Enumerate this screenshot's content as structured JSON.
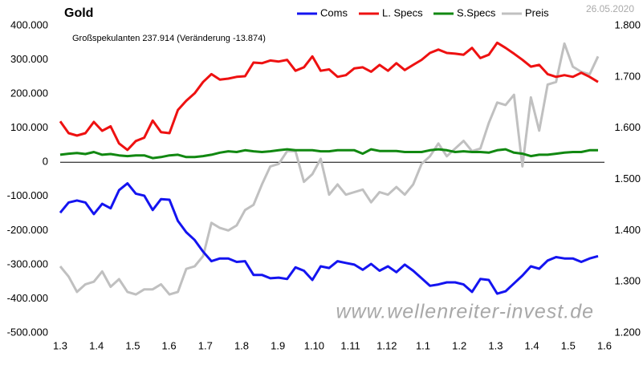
{
  "chart_data": {
    "type": "line",
    "title": "Gold",
    "subtitle": "Großspekulanten 237.914 (Veränderung -13.874)",
    "date": "26.05.2020",
    "watermark": "www.wellenreiter-invest.de",
    "xticks": [
      "1.3",
      "1.4",
      "1.5",
      "1.6",
      "1.7",
      "1.8",
      "1.9",
      "1.10",
      "1.11",
      "1.12",
      "1.1",
      "1.2",
      "1.3",
      "1.4",
      "1.5",
      "1.6"
    ],
    "ylim": [
      -500000,
      400000
    ],
    "yticks": [
      {
        "value": 400000,
        "label": "400.000"
      },
      {
        "value": 300000,
        "label": "300.000"
      },
      {
        "value": 200000,
        "label": "200.000"
      },
      {
        "value": 100000,
        "label": "100.000"
      },
      0,
      {
        "value": -100000,
        "label": "-100.000"
      },
      {
        "value": -200000,
        "label": "-200.000"
      },
      {
        "value": -300000,
        "label": "-300.000"
      },
      {
        "value": -400000,
        "label": "-400.000"
      },
      {
        "value": -500000,
        "label": "-500.000"
      }
    ],
    "y2lim": [
      1.2,
      1.8
    ],
    "y2ticks": [
      {
        "value": 1.8,
        "label": "1.800"
      },
      {
        "value": 1.7,
        "label": "1.700"
      },
      {
        "value": 1.6,
        "label": "1.600"
      },
      {
        "value": 1.5,
        "label": "1.500"
      },
      {
        "value": 1.4,
        "label": "1.400"
      },
      {
        "value": 1.3,
        "label": "1.300"
      },
      {
        "value": 1.2,
        "label": "1.200"
      }
    ],
    "grid": false,
    "legend": "top",
    "series": [
      {
        "name": "Preis",
        "color": "#c0c0c0",
        "axis": "y2",
        "values": [
          1.33,
          1.31,
          1.28,
          1.295,
          1.3,
          1.32,
          1.29,
          1.305,
          1.28,
          1.275,
          1.285,
          1.285,
          1.295,
          1.275,
          1.28,
          1.325,
          1.33,
          1.35,
          1.415,
          1.405,
          1.4,
          1.41,
          1.44,
          1.45,
          1.49,
          1.525,
          1.53,
          1.555,
          1.555,
          1.495,
          1.51,
          1.54,
          1.47,
          1.49,
          1.47,
          1.475,
          1.48,
          1.455,
          1.475,
          1.47,
          1.485,
          1.47,
          1.49,
          1.53,
          1.545,
          1.57,
          1.545,
          1.56,
          1.575,
          1.555,
          1.56,
          1.61,
          1.65,
          1.645,
          1.665,
          1.525,
          1.66,
          1.595,
          1.685,
          1.69,
          1.765,
          1.72,
          1.71,
          1.705,
          1.74
        ]
      },
      {
        "name": "Coms",
        "color": "#1414f0",
        "values": [
          -148000,
          -118000,
          -112000,
          -118000,
          -152000,
          -122000,
          -135000,
          -82000,
          -62000,
          -92000,
          -98000,
          -140000,
          -108000,
          -110000,
          -172000,
          -205000,
          -228000,
          -262000,
          -290000,
          -282000,
          -282000,
          -292000,
          -290000,
          -330000,
          -330000,
          -340000,
          -338000,
          -342000,
          -308000,
          -318000,
          -345000,
          -305000,
          -310000,
          -290000,
          -295000,
          -300000,
          -315000,
          -298000,
          -318000,
          -305000,
          -322000,
          -300000,
          -318000,
          -340000,
          -362000,
          -358000,
          -352000,
          -352000,
          -358000,
          -380000,
          -342000,
          -345000,
          -385000,
          -378000,
          -355000,
          -332000,
          -305000,
          -312000,
          -288000,
          -278000,
          -282000,
          -282000,
          -292000,
          -282000,
          -275000
        ]
      },
      {
        "name": "L. Specs",
        "color": "#ee1111",
        "values": [
          120000,
          85000,
          78000,
          85000,
          118000,
          92000,
          105000,
          55000,
          36000,
          62000,
          72000,
          122000,
          88000,
          85000,
          153000,
          180000,
          202000,
          235000,
          258000,
          242000,
          245000,
          250000,
          252000,
          292000,
          290000,
          298000,
          295000,
          300000,
          268000,
          278000,
          310000,
          268000,
          272000,
          250000,
          255000,
          275000,
          278000,
          265000,
          285000,
          268000,
          290000,
          270000,
          285000,
          300000,
          320000,
          330000,
          320000,
          318000,
          315000,
          335000,
          305000,
          315000,
          350000,
          335000,
          318000,
          300000,
          280000,
          285000,
          258000,
          250000,
          255000,
          250000,
          262000,
          250000,
          235000
        ]
      },
      {
        "name": "S.Specs",
        "color": "#118811",
        "values": [
          22000,
          25000,
          27000,
          24000,
          30000,
          22000,
          24000,
          20000,
          18000,
          20000,
          20000,
          12000,
          15000,
          20000,
          22000,
          15000,
          15000,
          18000,
          22000,
          28000,
          32000,
          30000,
          35000,
          32000,
          30000,
          32000,
          35000,
          38000,
          35000,
          35000,
          35000,
          32000,
          32000,
          35000,
          35000,
          35000,
          25000,
          38000,
          33000,
          33000,
          33000,
          30000,
          30000,
          30000,
          35000,
          38000,
          35000,
          30000,
          32000,
          30000,
          30000,
          28000,
          35000,
          38000,
          28000,
          25000,
          18000,
          22000,
          22000,
          25000,
          28000,
          30000,
          30000,
          35000,
          35000
        ]
      }
    ]
  }
}
